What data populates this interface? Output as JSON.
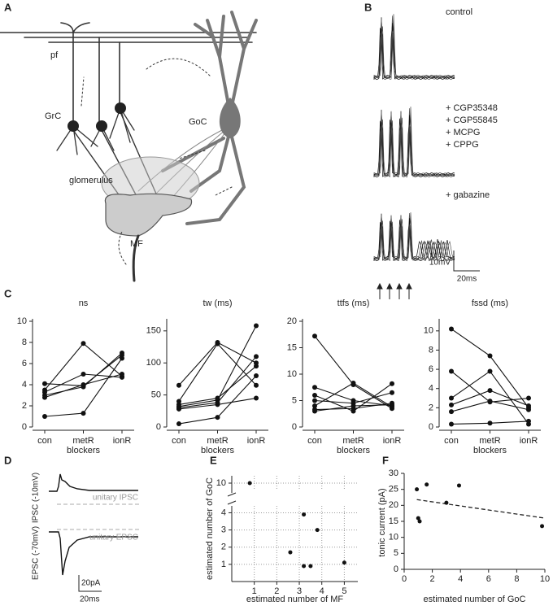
{
  "panel_labels": [
    "A",
    "B",
    "C",
    "D",
    "E",
    "F"
  ],
  "diagram_a": {
    "pf": "pf",
    "grc": "GrC",
    "goc": "GoC",
    "glomerulus": "glomerulus",
    "mf": "MF"
  },
  "traces_b": {
    "conditions": [
      "control",
      "+ CGP35348",
      "+ CGP55845",
      "+ MCPG",
      "+ CPPG",
      "+ gabazine"
    ],
    "scale_v": "10mV",
    "scale_t": "20ms"
  },
  "traces_d": {
    "ipsc_axis": "IPSC (-10mV)",
    "ipsc_ref": "unitary IPSC",
    "epsc_axis": "EPSC (-70mV)",
    "epsc_ref": "unitary EPSC",
    "scale_i": "20pA",
    "scale_t": "20ms"
  },
  "chart_data": [
    {
      "type": "line",
      "title": "ns",
      "xlabel": "blockers",
      "categories": [
        "con",
        "metR",
        "ionR"
      ],
      "ylim": [
        0,
        10
      ],
      "yticks": [
        0,
        2,
        4,
        6,
        8,
        10
      ],
      "series": [
        {
          "color": "#111",
          "values": [
            1.0,
            1.3,
            6.5
          ]
        },
        {
          "color": "#111",
          "values": [
            4.1,
            3.9,
            6.8
          ]
        },
        {
          "color": "#111",
          "values": [
            3.5,
            7.9,
            4.8
          ]
        },
        {
          "color": "#111",
          "values": [
            3.3,
            5.0,
            4.7
          ]
        },
        {
          "color": "#111",
          "values": [
            3.0,
            3.8,
            7.0
          ]
        },
        {
          "color": "#111",
          "values": [
            2.8,
            4.0,
            5.0
          ]
        }
      ]
    },
    {
      "type": "line",
      "title": "tw (ms)",
      "xlabel": "blockers",
      "categories": [
        "con",
        "metR",
        "ionR"
      ],
      "ylim": [
        0,
        165
      ],
      "yticks": [
        0,
        50,
        100,
        150
      ],
      "series": [
        {
          "color": "#111",
          "values": [
            5,
            15,
            80
          ]
        },
        {
          "color": "#111",
          "values": [
            28,
            35,
            45
          ]
        },
        {
          "color": "#111",
          "values": [
            30,
            38,
            110
          ]
        },
        {
          "color": "#111",
          "values": [
            32,
            42,
            158
          ]
        },
        {
          "color": "#111",
          "values": [
            35,
            45,
            95
          ]
        },
        {
          "color": "#111",
          "values": [
            40,
            130,
            65
          ]
        },
        {
          "color": "#111",
          "values": [
            65,
            132,
            100
          ]
        }
      ]
    },
    {
      "type": "line",
      "title": "ttfs (ms)",
      "xlabel": "blockers",
      "categories": [
        "con",
        "metR",
        "ionR"
      ],
      "ylim": [
        0,
        20
      ],
      "yticks": [
        0,
        5,
        10,
        15,
        20
      ],
      "series": [
        {
          "color": "#111",
          "values": [
            17.2,
            8.0,
            3.5
          ]
        },
        {
          "color": "#111",
          "values": [
            7.5,
            5.0,
            4.0
          ]
        },
        {
          "color": "#111",
          "values": [
            6.0,
            3.0,
            8.2
          ]
        },
        {
          "color": "#111",
          "values": [
            5.0,
            4.5,
            6.5
          ]
        },
        {
          "color": "#111",
          "values": [
            4.0,
            8.3,
            3.8
          ]
        },
        {
          "color": "#111",
          "values": [
            3.3,
            3.5,
            4.5
          ]
        },
        {
          "color": "#111",
          "values": [
            3.0,
            4.0,
            4.2
          ]
        }
      ]
    },
    {
      "type": "line",
      "title": "fssd (ms)",
      "xlabel": "blockers",
      "categories": [
        "con",
        "metR",
        "ionR"
      ],
      "ylim": [
        0,
        11
      ],
      "yticks": [
        0,
        2,
        4,
        6,
        8,
        10
      ],
      "series": [
        {
          "color": "#111",
          "values": [
            10.2,
            7.4,
            2.0
          ]
        },
        {
          "color": "#111",
          "values": [
            5.8,
            2.6,
            3.0
          ]
        },
        {
          "color": "#111",
          "values": [
            3.0,
            5.8,
            0.3
          ]
        },
        {
          "color": "#111",
          "values": [
            2.3,
            3.8,
            2.2
          ]
        },
        {
          "color": "#111",
          "values": [
            1.6,
            2.7,
            1.8
          ]
        },
        {
          "color": "#111",
          "values": [
            0.3,
            0.4,
            0.6
          ]
        }
      ]
    },
    {
      "type": "scatter",
      "xlabel": "estimated number of MF",
      "ylabel": "estimated number of GoC",
      "color": "#111",
      "grid": true,
      "y_break": true,
      "x": [
        0.8,
        2.6,
        3.2,
        3.2,
        3.5,
        3.8,
        5.0
      ],
      "y": [
        10,
        1.7,
        3.9,
        0.9,
        0.9,
        3.0,
        1.1
      ],
      "xlim": [
        0,
        5.6
      ],
      "xticks": [
        1,
        2,
        3,
        4,
        5
      ],
      "ylim": [
        0,
        4.4
      ],
      "ylim_upper": [
        9.5,
        10.5
      ],
      "yticks": [
        1,
        2,
        3,
        4,
        10
      ]
    },
    {
      "type": "scatter",
      "xlabel": "estimated number of GoC",
      "ylabel": "tonic current (pA)",
      "color": "#111",
      "grid": false,
      "x": [
        0.9,
        1.0,
        1.1,
        1.6,
        3.0,
        3.9,
        9.8
      ],
      "y": [
        25,
        16,
        15,
        26.5,
        20.8,
        26.2,
        13.5
      ],
      "fit": {
        "x": [
          0.9,
          10
        ],
        "y": [
          21.8,
          16
        ]
      },
      "xlim": [
        0,
        10
      ],
      "xticks": [
        0,
        2,
        4,
        6,
        8,
        10
      ],
      "ylim": [
        0,
        30
      ],
      "yticks": [
        0,
        5,
        10,
        15,
        20,
        25,
        30
      ]
    }
  ]
}
